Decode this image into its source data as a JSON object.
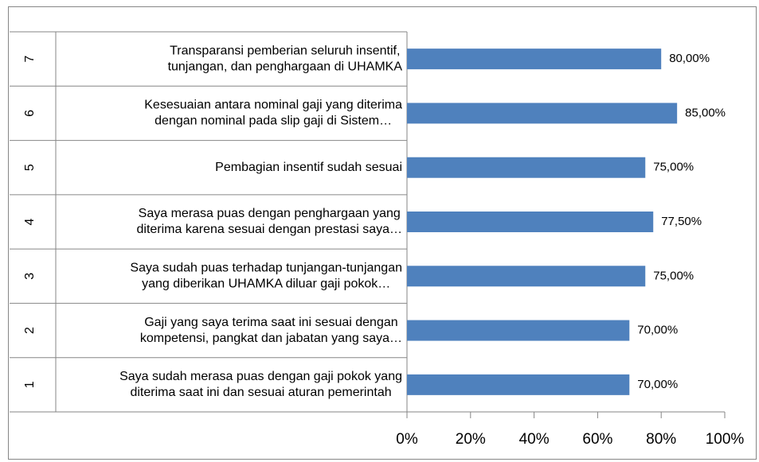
{
  "chart_data": {
    "type": "bar",
    "orientation": "horizontal",
    "category_numbers": [
      1,
      2,
      3,
      4,
      5,
      6,
      7
    ],
    "categories": [
      [
        "Saya sudah merasa puas dengan gaji pokok yang",
        "diterima saat ini dan sesuai aturan pemerintah"
      ],
      [
        "Gaji yang saya terima saat ini sesuai dengan",
        "kompetensi, pangkat dan jabatan yang saya…"
      ],
      [
        "Saya sudah puas terhadap tunjangan-tunjangan",
        "yang diberikan UHAMKA diluar gaji pokok…"
      ],
      [
        "Saya merasa puas dengan penghargaan yang",
        "diterima karena sesuai dengan prestasi saya…"
      ],
      [
        "Pembagian insentif sudah sesuai"
      ],
      [
        "Kesesuaian antara nominal gaji yang diterima",
        "dengan nominal pada slip gaji di Sistem…"
      ],
      [
        "Transparansi pemberian seluruh insentif,",
        "tunjangan, dan penghargaan di UHAMKA"
      ]
    ],
    "values": [
      70,
      70,
      75,
      77.5,
      75,
      85,
      80
    ],
    "value_labels": [
      "70,00%",
      "70,00%",
      "75,00%",
      "77,50%",
      "75,00%",
      "85,00%",
      "80,00%"
    ],
    "color": "#4f81bd",
    "xlim": [
      0,
      100
    ],
    "xticks": [
      {
        "value": 0,
        "label": "0%"
      },
      {
        "value": 20,
        "label": "20%"
      },
      {
        "value": 40,
        "label": "40%"
      },
      {
        "value": 60,
        "label": "60%"
      },
      {
        "value": 80,
        "label": "80%"
      },
      {
        "value": 100,
        "label": "100%"
      }
    ]
  }
}
